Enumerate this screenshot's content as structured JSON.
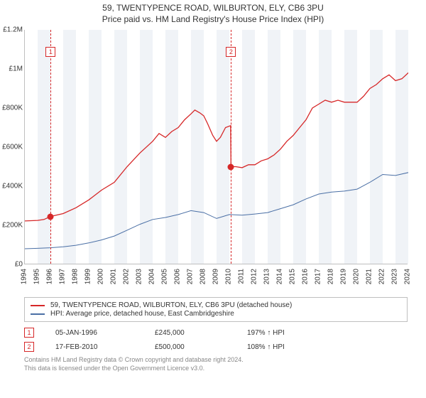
{
  "title": {
    "line1": "59, TWENTYPENCE ROAD, WILBURTON, ELY, CB6 3PU",
    "line2": "Price paid vs. HM Land Registry's House Price Index (HPI)"
  },
  "chart": {
    "type": "line",
    "background_color": "#ffffff",
    "band_color": "#f0f3f7",
    "axis_color": "#bfbfbf",
    "label_fontsize": 10,
    "label_color": "#333333",
    "x": {
      "years": [
        1994,
        1995,
        1996,
        1997,
        1998,
        1999,
        2000,
        2001,
        2002,
        2003,
        2004,
        2005,
        2006,
        2007,
        2008,
        2009,
        2010,
        2011,
        2012,
        2013,
        2014,
        2015,
        2016,
        2017,
        2018,
        2019,
        2020,
        2021,
        2022,
        2023,
        2024
      ],
      "min": 1994,
      "max": 2024
    },
    "y": {
      "ticks": [
        0,
        200000,
        400000,
        600000,
        800000,
        1000000,
        1200000
      ],
      "labels": [
        "£0",
        "£200K",
        "£400K",
        "£600K",
        "£800K",
        "£1M",
        "£1.2M"
      ],
      "min": 0,
      "max": 1200000
    },
    "series": {
      "property": {
        "label": "59, TWENTYPENCE ROAD, WILBURTON, ELY, CB6 3PU (detached house)",
        "color": "#d62728",
        "line_width": 1.3,
        "data": [
          [
            1994.0,
            222000
          ],
          [
            1995.0,
            225000
          ],
          [
            1995.5,
            230000
          ],
          [
            1996.0,
            245000
          ],
          [
            1997.0,
            260000
          ],
          [
            1998.0,
            290000
          ],
          [
            1999.0,
            330000
          ],
          [
            2000.0,
            380000
          ],
          [
            2001.0,
            420000
          ],
          [
            2002.0,
            500000
          ],
          [
            2003.0,
            570000
          ],
          [
            2004.0,
            630000
          ],
          [
            2004.5,
            670000
          ],
          [
            2005.0,
            650000
          ],
          [
            2005.5,
            680000
          ],
          [
            2006.0,
            700000
          ],
          [
            2006.5,
            740000
          ],
          [
            2007.0,
            770000
          ],
          [
            2007.3,
            790000
          ],
          [
            2007.7,
            775000
          ],
          [
            2008.0,
            760000
          ],
          [
            2008.3,
            720000
          ],
          [
            2008.7,
            660000
          ],
          [
            2009.0,
            630000
          ],
          [
            2009.3,
            650000
          ],
          [
            2009.7,
            700000
          ],
          [
            2010.1,
            710000
          ],
          [
            2010.13,
            500000
          ],
          [
            2010.5,
            500000
          ],
          [
            2011.0,
            495000
          ],
          [
            2011.5,
            510000
          ],
          [
            2012.0,
            510000
          ],
          [
            2012.5,
            530000
          ],
          [
            2013.0,
            540000
          ],
          [
            2013.5,
            560000
          ],
          [
            2014.0,
            590000
          ],
          [
            2014.5,
            630000
          ],
          [
            2015.0,
            660000
          ],
          [
            2015.5,
            700000
          ],
          [
            2016.0,
            740000
          ],
          [
            2016.5,
            800000
          ],
          [
            2017.0,
            820000
          ],
          [
            2017.5,
            840000
          ],
          [
            2018.0,
            830000
          ],
          [
            2018.5,
            840000
          ],
          [
            2019.0,
            830000
          ],
          [
            2019.5,
            830000
          ],
          [
            2020.0,
            830000
          ],
          [
            2020.5,
            860000
          ],
          [
            2021.0,
            900000
          ],
          [
            2021.5,
            920000
          ],
          [
            2022.0,
            950000
          ],
          [
            2022.5,
            970000
          ],
          [
            2023.0,
            940000
          ],
          [
            2023.5,
            950000
          ],
          [
            2024.0,
            980000
          ],
          [
            2024.3,
            1000000
          ]
        ]
      },
      "hpi": {
        "label": "HPI: Average price, detached house, East Cambridgeshire",
        "color": "#4a6fa5",
        "line_width": 1.0,
        "data": [
          [
            1994.0,
            80000
          ],
          [
            1995.0,
            82000
          ],
          [
            1996.0,
            85000
          ],
          [
            1997.0,
            90000
          ],
          [
            1998.0,
            98000
          ],
          [
            1999.0,
            110000
          ],
          [
            2000.0,
            125000
          ],
          [
            2001.0,
            145000
          ],
          [
            2002.0,
            175000
          ],
          [
            2003.0,
            205000
          ],
          [
            2004.0,
            230000
          ],
          [
            2005.0,
            240000
          ],
          [
            2006.0,
            255000
          ],
          [
            2007.0,
            275000
          ],
          [
            2008.0,
            265000
          ],
          [
            2009.0,
            235000
          ],
          [
            2009.5,
            245000
          ],
          [
            2010.0,
            255000
          ],
          [
            2011.0,
            252000
          ],
          [
            2012.0,
            258000
          ],
          [
            2013.0,
            265000
          ],
          [
            2014.0,
            285000
          ],
          [
            2015.0,
            305000
          ],
          [
            2016.0,
            335000
          ],
          [
            2017.0,
            360000
          ],
          [
            2018.0,
            370000
          ],
          [
            2019.0,
            375000
          ],
          [
            2020.0,
            385000
          ],
          [
            2021.0,
            420000
          ],
          [
            2022.0,
            460000
          ],
          [
            2023.0,
            455000
          ],
          [
            2024.0,
            470000
          ],
          [
            2024.3,
            480000
          ]
        ]
      }
    },
    "sale_markers": [
      {
        "idx": "1",
        "year": 1996.02,
        "value": 245000,
        "color": "#d62728"
      },
      {
        "idx": "2",
        "year": 2010.13,
        "value": 500000,
        "color": "#d62728"
      }
    ]
  },
  "legend": {
    "border_color": "#bfbfbf",
    "fontsize": 10
  },
  "sales": [
    {
      "idx": "1",
      "date": "05-JAN-1996",
      "price": "£245,000",
      "hpi_pct": "197% ↑ HPI",
      "color": "#d62728"
    },
    {
      "idx": "2",
      "date": "17-FEB-2010",
      "price": "£500,000",
      "hpi_pct": "108% ↑ HPI",
      "color": "#d62728"
    }
  ],
  "footer": {
    "line1": "Contains HM Land Registry data © Crown copyright and database right 2024.",
    "line2": "This data is licensed under the Open Government Licence v3.0."
  }
}
